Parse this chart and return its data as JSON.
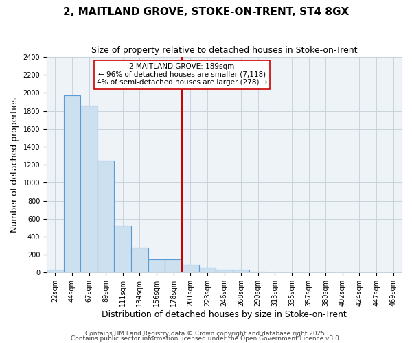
{
  "title": "2, MAITLAND GROVE, STOKE-ON-TRENT, ST4 8GX",
  "subtitle": "Size of property relative to detached houses in Stoke-on-Trent",
  "xlabel": "Distribution of detached houses by size in Stoke-on-Trent",
  "ylabel": "Number of detached properties",
  "categories": [
    "22sqm",
    "44sqm",
    "67sqm",
    "89sqm",
    "111sqm",
    "134sqm",
    "156sqm",
    "178sqm",
    "201sqm",
    "223sqm",
    "246sqm",
    "268sqm",
    "290sqm",
    "313sqm",
    "335sqm",
    "357sqm",
    "380sqm",
    "402sqm",
    "424sqm",
    "447sqm",
    "469sqm"
  ],
  "values": [
    30,
    1970,
    1860,
    1250,
    520,
    280,
    150,
    150,
    90,
    55,
    35,
    35,
    10,
    5,
    0,
    0,
    0,
    0,
    0,
    0,
    0
  ],
  "bar_color": "#cce0f0",
  "bar_edge_color": "#5b9bd5",
  "vline_position": 8.0,
  "vline_color": "#cc0000",
  "annotation_line1": "2 MAITLAND GROVE: 189sqm",
  "annotation_line2": "← 96% of detached houses are smaller (7,118)",
  "annotation_line3": "4% of semi-detached houses are larger (278) →",
  "annotation_box_color": "#ffffff",
  "annotation_box_edge": "#cc0000",
  "ylim": [
    0,
    2400
  ],
  "yticks": [
    0,
    200,
    400,
    600,
    800,
    1000,
    1200,
    1400,
    1600,
    1800,
    2000,
    2200,
    2400
  ],
  "footer1": "Contains HM Land Registry data © Crown copyright and database right 2025.",
  "footer2": "Contains public sector information licensed under the Open Government Licence v3.0.",
  "background_color": "#ffffff",
  "plot_bg_color": "#eef3f8",
  "grid_color": "#c8d4dc",
  "title_fontsize": 11,
  "subtitle_fontsize": 9,
  "axis_label_fontsize": 9,
  "tick_fontsize": 7,
  "footer_fontsize": 6.5,
  "annotation_fontsize": 7.5
}
